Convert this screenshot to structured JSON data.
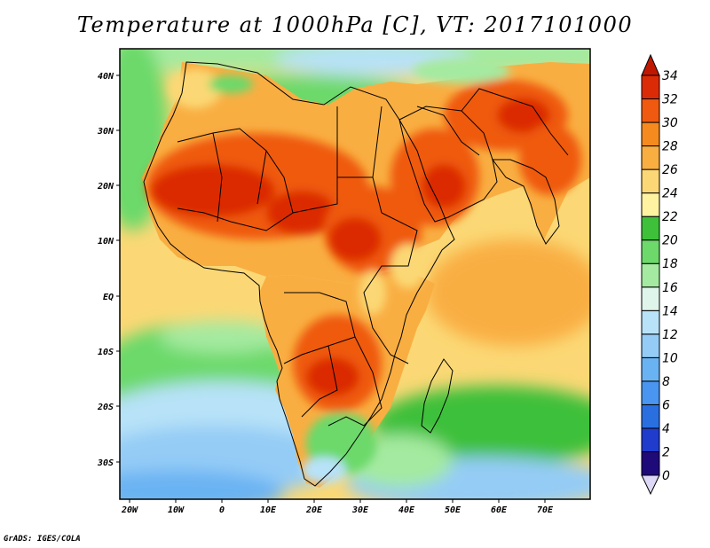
{
  "title": "Temperature at 1000hPa [C], VT: 2017101000",
  "credit": "GrADS: IGES/COLA",
  "map": {
    "lat_ticks": [
      "40N",
      "30N",
      "20N",
      "10N",
      "EQ",
      "10S",
      "20S",
      "30S"
    ],
    "lon_ticks": [
      "20W",
      "10W",
      "0",
      "10E",
      "20E",
      "30E",
      "40E",
      "50E",
      "60E",
      "70E"
    ]
  },
  "colorbar": {
    "labels": [
      "34",
      "32",
      "30",
      "28",
      "26",
      "24",
      "22",
      "20",
      "18",
      "16",
      "14",
      "12",
      "10",
      "8",
      "6",
      "4",
      "2",
      "0"
    ],
    "colors": [
      "#1f0a7a",
      "#1f3ccc",
      "#2a6fe0",
      "#4a95ef",
      "#6ab3f3",
      "#94ccf6",
      "#b7e2f8",
      "#dff5ec",
      "#a4eaa0",
      "#6cd96a",
      "#3ec03a",
      "#fff2a0",
      "#fbd875",
      "#f9ae42",
      "#f58a1f",
      "#ef5a10",
      "#db2b06"
    ],
    "over_color": "#c01800",
    "under_color": "#dcd8f5"
  },
  "legend_colors": {
    "ocean_north": "#b7e2f8",
    "sea_med": "#6cd96a",
    "ocean_tropical": "#fbd875",
    "hot_land": "#ef5a10",
    "very_hot": "#db2b06",
    "warm_land": "#f9ae42"
  }
}
